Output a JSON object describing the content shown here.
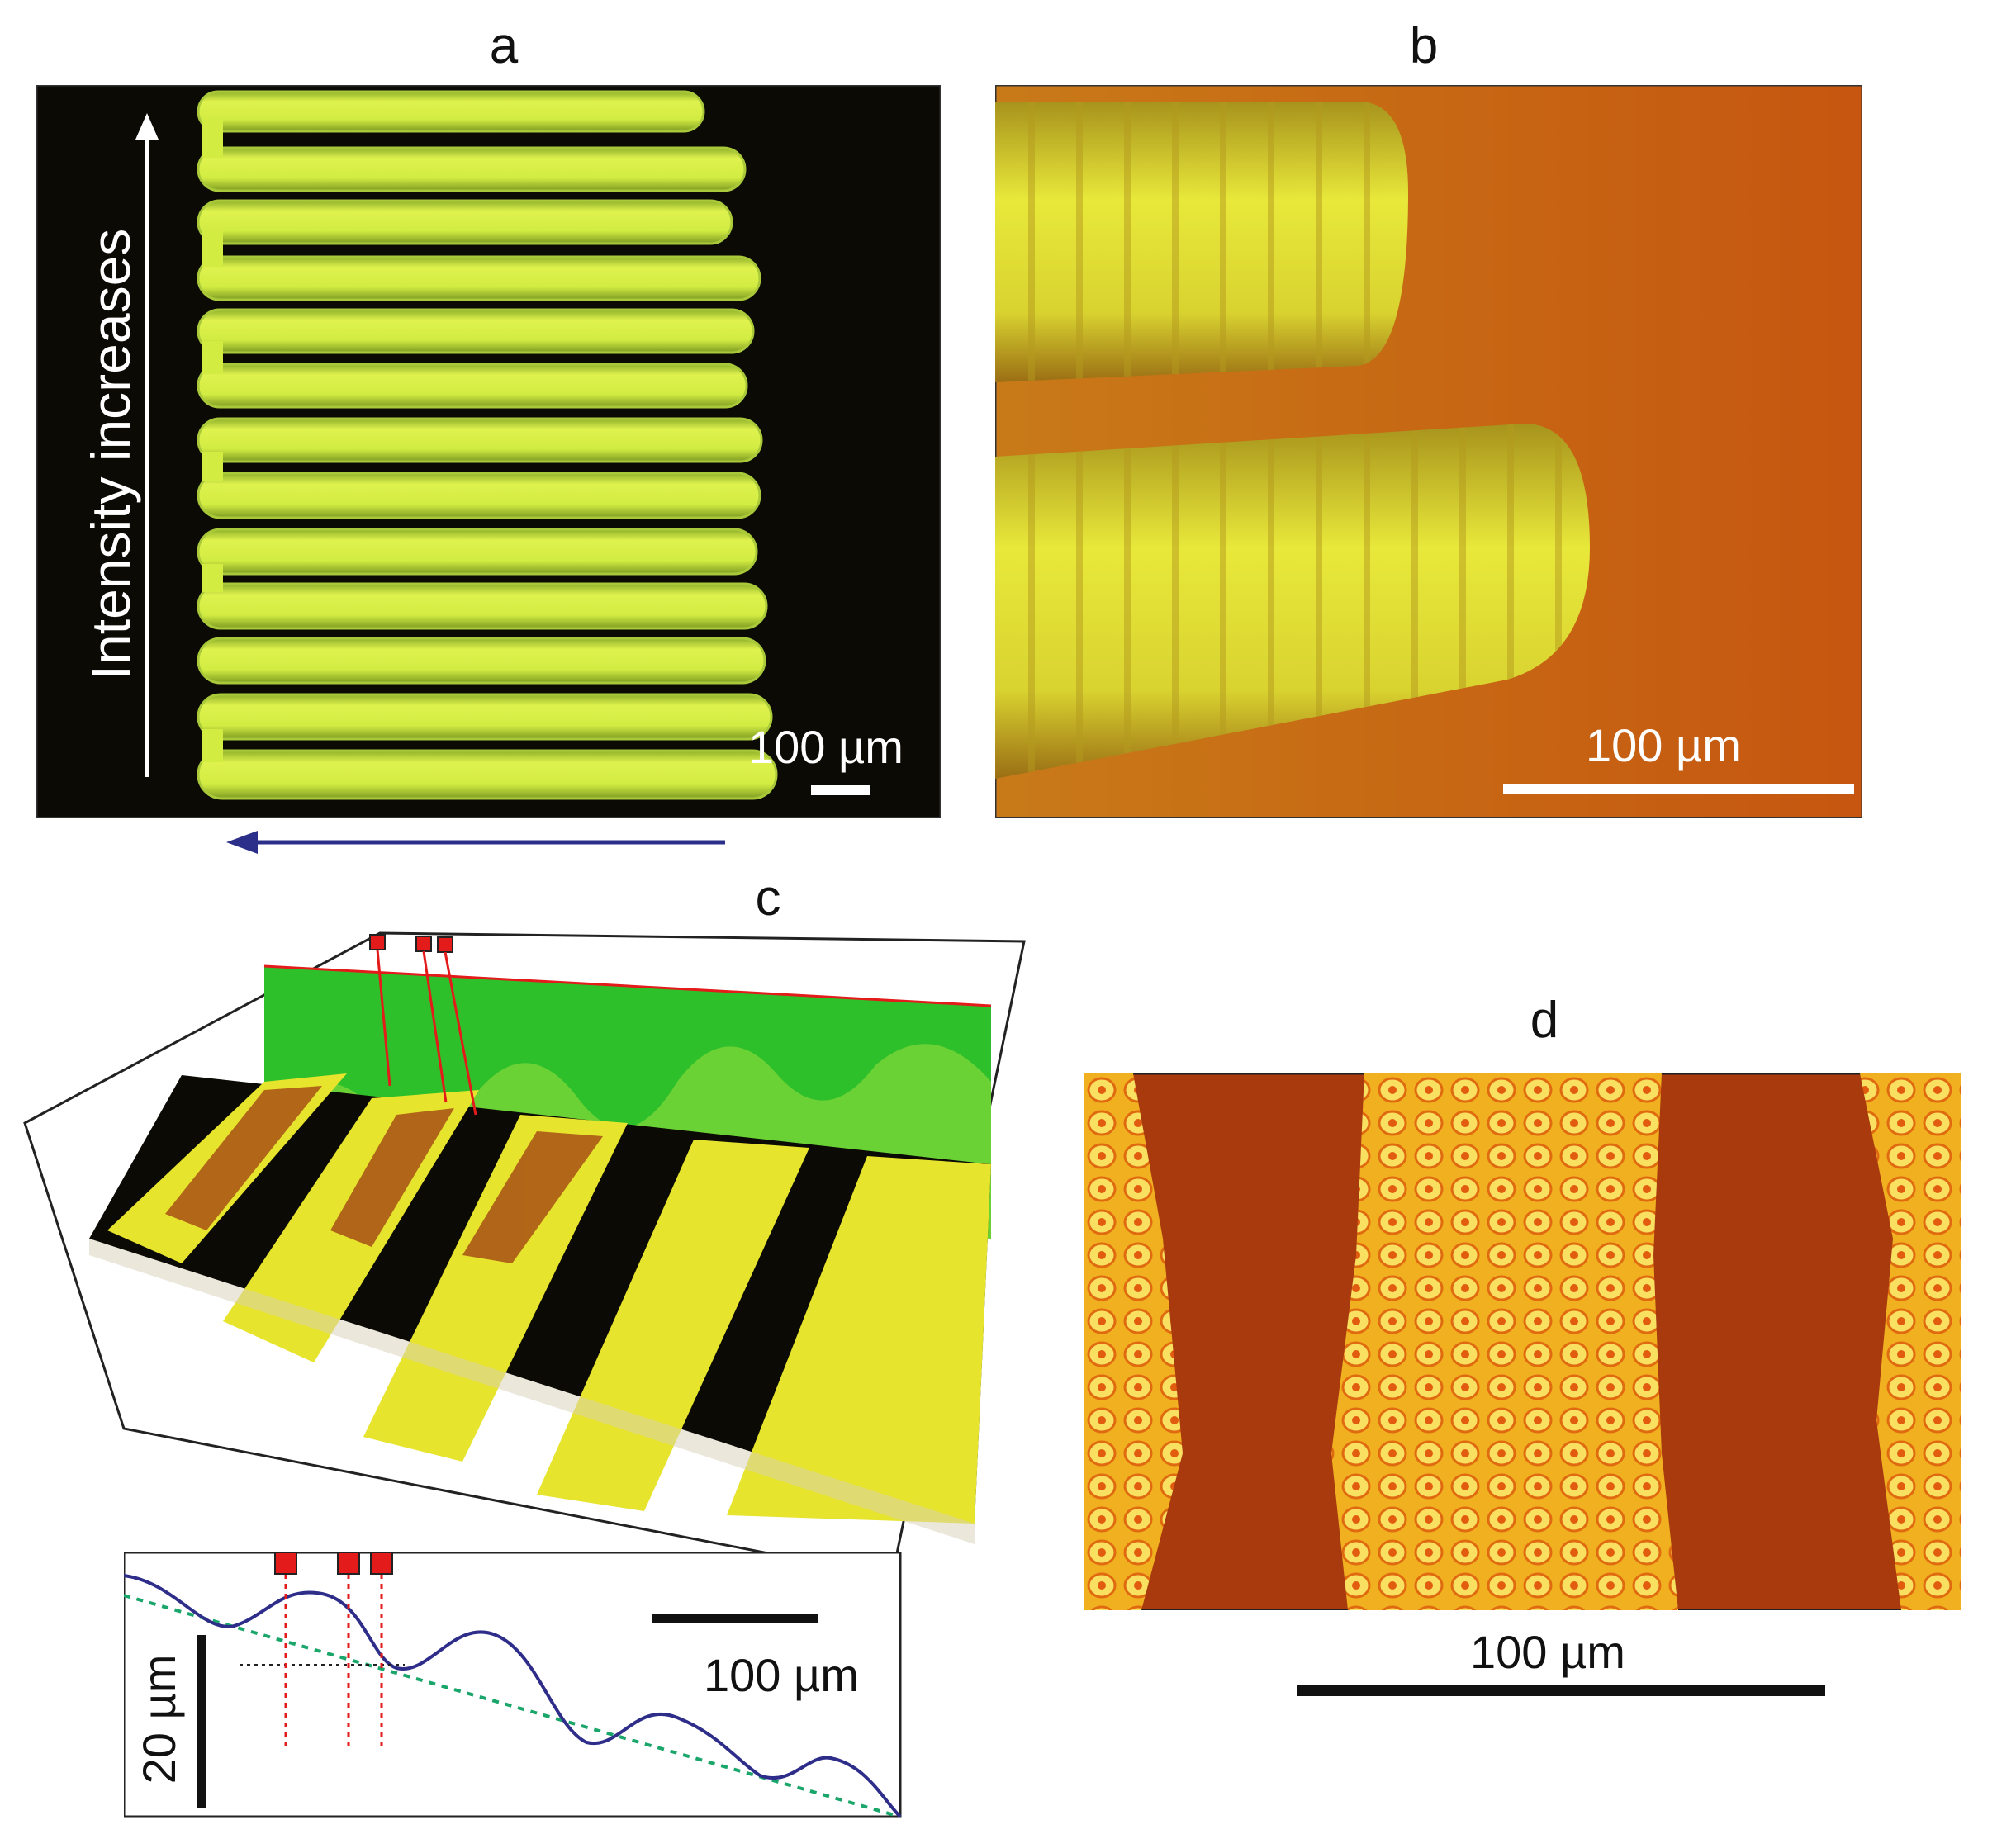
{
  "figure": {
    "panels": [
      {
        "letter": "a",
        "scale_label": "100 µm",
        "axis_label": "Intensity increases"
      },
      {
        "letter": "b",
        "scale_label": "100 µm"
      },
      {
        "letter": "c",
        "profile": {
          "horizontal_scale": "100 µm",
          "vertical_scale": "20 µm"
        }
      },
      {
        "letter": "d",
        "scale_label": "100 µm"
      }
    ]
  },
  "colors": {
    "track_yellow": "#d9f046",
    "track_green": "#b8e030",
    "dark_bg": "#0b0a05",
    "amber_bg": "#c25a10",
    "fluorescent_green": "#2ec02a",
    "profile_line": "#2e2e8a",
    "fit_line": "#1aa66a",
    "marker_red": "#e31b1b",
    "scan_arrow": "#2b2f8a"
  }
}
